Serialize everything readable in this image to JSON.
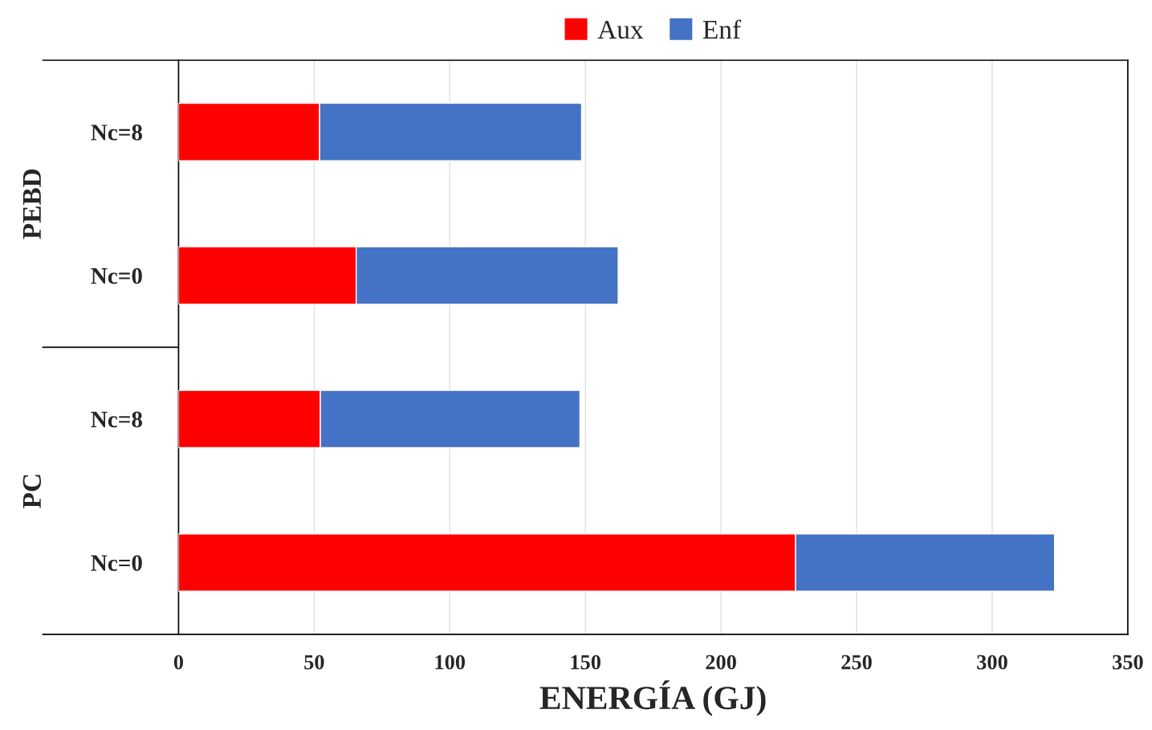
{
  "chart_data": {
    "type": "bar",
    "orientation": "horizontal",
    "stacked": true,
    "categories": [
      "Nc=8",
      "Nc=0",
      "Nc=8",
      "Nc=0"
    ],
    "series": [
      {
        "name": "Aux",
        "color": "#ff0000",
        "values": [
          52.0,
          65.5,
          52.3,
          227.5
        ]
      },
      {
        "name": "Enf",
        "color": "#4472c4",
        "values": [
          96.6,
          96.6,
          95.7,
          95.5
        ]
      }
    ],
    "xlabel": "ENERGÍA (GJ)",
    "annotations": [
      "PEBD",
      "PC"
    ],
    "xlim": [
      0,
      350
    ],
    "xticks": [
      0,
      50,
      100,
      150,
      200,
      250,
      300,
      350
    ],
    "grid": "x",
    "legend": "top"
  }
}
